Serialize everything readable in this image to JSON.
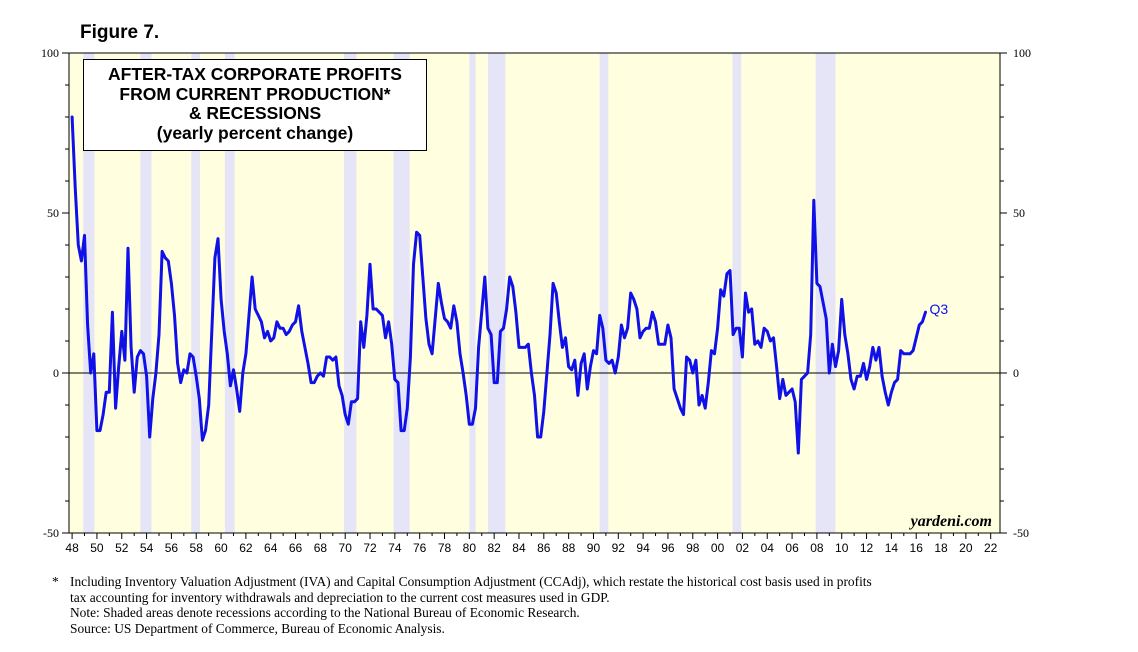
{
  "figure_label": "Figure 7.",
  "chart_data": {
    "type": "line",
    "title_lines": [
      "AFTER-TAX CORPORATE PROFITS",
      "FROM CURRENT PRODUCTION*",
      "& RECESSIONS",
      "(yearly percent change)"
    ],
    "watermark": "yardeni.com",
    "end_label": "Q3",
    "x_range": [
      1947.75,
      2022.75
    ],
    "ylim": [
      -50,
      100
    ],
    "y_ticks_left": [
      100,
      50,
      0,
      -50
    ],
    "y_ticks_right": [
      100,
      50,
      0,
      -50
    ],
    "x_tick_labels": [
      "48",
      "50",
      "52",
      "54",
      "56",
      "58",
      "60",
      "62",
      "64",
      "66",
      "68",
      "70",
      "72",
      "74",
      "76",
      "78",
      "80",
      "82",
      "84",
      "86",
      "88",
      "90",
      "92",
      "94",
      "96",
      "98",
      "00",
      "02",
      "04",
      "06",
      "08",
      "10",
      "12",
      "14",
      "16",
      "18",
      "20",
      "22"
    ],
    "colors": {
      "plot_bg": "#ffffe0",
      "recession": "#e5e5f7",
      "line": "#1010e8",
      "axis": "#000000"
    },
    "recessions": [
      [
        1948.9,
        1949.8
      ],
      [
        1953.5,
        1954.4
      ],
      [
        1957.6,
        1958.3
      ],
      [
        1960.3,
        1961.1
      ],
      [
        1969.9,
        1970.9
      ],
      [
        1973.9,
        1975.2
      ],
      [
        1980.0,
        1980.5
      ],
      [
        1981.5,
        1982.9
      ],
      [
        1990.5,
        1991.2
      ],
      [
        2001.2,
        2001.9
      ],
      [
        2007.9,
        2009.5
      ]
    ],
    "series": [
      {
        "name": "After-tax corporate profits from current production, y/y % change",
        "points": [
          [
            1948.0,
            80
          ],
          [
            1948.25,
            58
          ],
          [
            1948.5,
            40
          ],
          [
            1948.75,
            35
          ],
          [
            1949.0,
            43
          ],
          [
            1949.25,
            15
          ],
          [
            1949.5,
            0
          ],
          [
            1949.75,
            6
          ],
          [
            1950.0,
            -18
          ],
          [
            1950.25,
            -18
          ],
          [
            1950.5,
            -13
          ],
          [
            1950.75,
            -6
          ],
          [
            1951.0,
            -6
          ],
          [
            1951.25,
            19
          ],
          [
            1951.5,
            -11
          ],
          [
            1951.75,
            2
          ],
          [
            1952.0,
            13
          ],
          [
            1952.25,
            4
          ],
          [
            1952.5,
            39
          ],
          [
            1952.75,
            8
          ],
          [
            1953.0,
            -6
          ],
          [
            1953.25,
            5
          ],
          [
            1953.5,
            7
          ],
          [
            1953.75,
            6
          ],
          [
            1954.0,
            -1
          ],
          [
            1954.25,
            -20
          ],
          [
            1954.5,
            -8
          ],
          [
            1954.75,
            0
          ],
          [
            1955.0,
            12
          ],
          [
            1955.25,
            38
          ],
          [
            1955.5,
            36
          ],
          [
            1955.75,
            35
          ],
          [
            1956.0,
            28
          ],
          [
            1956.25,
            18
          ],
          [
            1956.5,
            3
          ],
          [
            1956.75,
            -3
          ],
          [
            1957.0,
            1
          ],
          [
            1957.25,
            0
          ],
          [
            1957.5,
            6
          ],
          [
            1957.75,
            5
          ],
          [
            1958.0,
            -1
          ],
          [
            1958.25,
            -8
          ],
          [
            1958.5,
            -21
          ],
          [
            1958.75,
            -18
          ],
          [
            1959.0,
            -10
          ],
          [
            1959.25,
            13
          ],
          [
            1959.5,
            36
          ],
          [
            1959.75,
            42
          ],
          [
            1960.0,
            23
          ],
          [
            1960.25,
            13
          ],
          [
            1960.5,
            6
          ],
          [
            1960.75,
            -4
          ],
          [
            1961.0,
            1
          ],
          [
            1961.25,
            -5
          ],
          [
            1961.5,
            -12
          ],
          [
            1961.75,
            0
          ],
          [
            1962.0,
            6
          ],
          [
            1962.25,
            18
          ],
          [
            1962.5,
            30
          ],
          [
            1962.75,
            20
          ],
          [
            1963.0,
            18
          ],
          [
            1963.25,
            16
          ],
          [
            1963.5,
            11
          ],
          [
            1963.75,
            13
          ],
          [
            1964.0,
            10
          ],
          [
            1964.25,
            11
          ],
          [
            1964.5,
            16
          ],
          [
            1964.75,
            14
          ],
          [
            1965.0,
            14
          ],
          [
            1965.25,
            12
          ],
          [
            1965.5,
            13
          ],
          [
            1965.75,
            15
          ],
          [
            1966.0,
            16
          ],
          [
            1966.25,
            21
          ],
          [
            1966.5,
            13
          ],
          [
            1966.75,
            8
          ],
          [
            1967.0,
            3
          ],
          [
            1967.25,
            -3
          ],
          [
            1967.5,
            -3
          ],
          [
            1967.75,
            -1
          ],
          [
            1968.0,
            0
          ],
          [
            1968.25,
            -1
          ],
          [
            1968.5,
            5
          ],
          [
            1968.75,
            5
          ],
          [
            1969.0,
            4
          ],
          [
            1969.25,
            5
          ],
          [
            1969.5,
            -4
          ],
          [
            1969.75,
            -7
          ],
          [
            1970.0,
            -13
          ],
          [
            1970.25,
            -16
          ],
          [
            1970.5,
            -9
          ],
          [
            1970.75,
            -9
          ],
          [
            1971.0,
            -8
          ],
          [
            1971.25,
            16
          ],
          [
            1971.5,
            8
          ],
          [
            1971.75,
            18
          ],
          [
            1972.0,
            34
          ],
          [
            1972.25,
            20
          ],
          [
            1972.5,
            20
          ],
          [
            1972.75,
            19
          ],
          [
            1973.0,
            18
          ],
          [
            1973.25,
            11
          ],
          [
            1973.5,
            16
          ],
          [
            1973.75,
            9
          ],
          [
            1974.0,
            -2
          ],
          [
            1974.25,
            -3
          ],
          [
            1974.5,
            -18
          ],
          [
            1974.75,
            -18
          ],
          [
            1975.0,
            -11
          ],
          [
            1975.25,
            5
          ],
          [
            1975.5,
            34
          ],
          [
            1975.75,
            44
          ],
          [
            1976.0,
            43
          ],
          [
            1976.25,
            30
          ],
          [
            1976.5,
            17
          ],
          [
            1976.75,
            9
          ],
          [
            1977.0,
            6
          ],
          [
            1977.25,
            17
          ],
          [
            1977.5,
            28
          ],
          [
            1977.75,
            22
          ],
          [
            1978.0,
            17
          ],
          [
            1978.25,
            16
          ],
          [
            1978.5,
            14
          ],
          [
            1978.75,
            21
          ],
          [
            1979.0,
            16
          ],
          [
            1979.25,
            6
          ],
          [
            1979.5,
            0
          ],
          [
            1979.75,
            -7
          ],
          [
            1980.0,
            -16
          ],
          [
            1980.25,
            -16
          ],
          [
            1980.5,
            -11
          ],
          [
            1980.75,
            8
          ],
          [
            1981.0,
            19
          ],
          [
            1981.25,
            30
          ],
          [
            1981.5,
            14
          ],
          [
            1981.75,
            12
          ],
          [
            1982.0,
            -3
          ],
          [
            1982.25,
            -3
          ],
          [
            1982.5,
            13
          ],
          [
            1982.75,
            14
          ],
          [
            1983.0,
            20
          ],
          [
            1983.25,
            30
          ],
          [
            1983.5,
            27
          ],
          [
            1983.75,
            19
          ],
          [
            1984.0,
            8
          ],
          [
            1984.25,
            8
          ],
          [
            1984.5,
            8
          ],
          [
            1984.75,
            9
          ],
          [
            1985.0,
            0
          ],
          [
            1985.25,
            -7
          ],
          [
            1985.5,
            -20
          ],
          [
            1985.75,
            -20
          ],
          [
            1986.0,
            -12
          ],
          [
            1986.25,
            0
          ],
          [
            1986.5,
            12
          ],
          [
            1986.75,
            28
          ],
          [
            1987.0,
            25
          ],
          [
            1987.25,
            16
          ],
          [
            1987.5,
            8
          ],
          [
            1987.75,
            11
          ],
          [
            1988.0,
            2
          ],
          [
            1988.25,
            1
          ],
          [
            1988.5,
            4
          ],
          [
            1988.75,
            -7
          ],
          [
            1989.0,
            3
          ],
          [
            1989.25,
            6
          ],
          [
            1989.5,
            -5
          ],
          [
            1989.75,
            2
          ],
          [
            1990.0,
            7
          ],
          [
            1990.25,
            6
          ],
          [
            1990.5,
            18
          ],
          [
            1990.75,
            14
          ],
          [
            1991.0,
            4
          ],
          [
            1991.25,
            3
          ],
          [
            1991.5,
            4
          ],
          [
            1991.75,
            0
          ],
          [
            1992.0,
            5
          ],
          [
            1992.25,
            15
          ],
          [
            1992.5,
            11
          ],
          [
            1992.75,
            14
          ],
          [
            1993.0,
            25
          ],
          [
            1993.25,
            23
          ],
          [
            1993.5,
            20
          ],
          [
            1993.75,
            11
          ],
          [
            1994.0,
            13
          ],
          [
            1994.25,
            14
          ],
          [
            1994.5,
            14
          ],
          [
            1994.75,
            19
          ],
          [
            1995.0,
            16
          ],
          [
            1995.25,
            9
          ],
          [
            1995.5,
            9
          ],
          [
            1995.75,
            9
          ],
          [
            1996.0,
            15
          ],
          [
            1996.25,
            11
          ],
          [
            1996.5,
            -5
          ],
          [
            1996.75,
            -8
          ],
          [
            1997.0,
            -11
          ],
          [
            1997.25,
            -13
          ],
          [
            1997.5,
            5
          ],
          [
            1997.75,
            4
          ],
          [
            1998.0,
            0
          ],
          [
            1998.25,
            4
          ],
          [
            1998.5,
            -10
          ],
          [
            1998.75,
            -7
          ],
          [
            1999.0,
            -11
          ],
          [
            1999.25,
            -3
          ],
          [
            1999.5,
            7
          ],
          [
            1999.75,
            6
          ],
          [
            2000.0,
            14
          ],
          [
            2000.25,
            26
          ],
          [
            2000.5,
            24
          ],
          [
            2000.75,
            31
          ],
          [
            2001.0,
            32
          ],
          [
            2001.25,
            12
          ],
          [
            2001.5,
            14
          ],
          [
            2001.75,
            14
          ],
          [
            2002.0,
            5
          ],
          [
            2002.25,
            25
          ],
          [
            2002.5,
            19
          ],
          [
            2002.75,
            20
          ],
          [
            2003.0,
            9
          ],
          [
            2003.25,
            10
          ],
          [
            2003.5,
            8
          ],
          [
            2003.75,
            14
          ],
          [
            2004.0,
            13
          ],
          [
            2004.25,
            10
          ],
          [
            2004.5,
            11
          ],
          [
            2004.75,
            2
          ],
          [
            2005.0,
            -8
          ],
          [
            2005.25,
            -2
          ],
          [
            2005.5,
            -7
          ],
          [
            2005.75,
            -6
          ],
          [
            2006.0,
            -5
          ],
          [
            2006.25,
            -9
          ],
          [
            2006.5,
            -25
          ],
          [
            2006.75,
            -2
          ],
          [
            2007.0,
            -1
          ],
          [
            2007.25,
            0
          ],
          [
            2007.5,
            12
          ],
          [
            2007.75,
            54
          ],
          [
            2008.0,
            28
          ],
          [
            2008.25,
            27
          ],
          [
            2008.5,
            22
          ],
          [
            2008.75,
            17
          ],
          [
            2009.0,
            0
          ],
          [
            2009.25,
            9
          ],
          [
            2009.5,
            2
          ],
          [
            2009.75,
            7
          ],
          [
            2010.0,
            23
          ],
          [
            2010.25,
            12
          ],
          [
            2010.5,
            6
          ],
          [
            2010.75,
            -2
          ],
          [
            2011.0,
            -5
          ],
          [
            2011.25,
            -1
          ],
          [
            2011.5,
            -1
          ],
          [
            2011.75,
            3
          ],
          [
            2012.0,
            -2
          ],
          [
            2012.25,
            2
          ],
          [
            2012.5,
            8
          ],
          [
            2012.75,
            4
          ],
          [
            2013.0,
            8
          ],
          [
            2013.25,
            -1
          ],
          [
            2013.5,
            -6
          ],
          [
            2013.75,
            -10
          ],
          [
            2014.0,
            -6
          ],
          [
            2014.25,
            -3
          ],
          [
            2014.5,
            -2
          ],
          [
            2014.75,
            7
          ],
          [
            2015.0,
            6
          ],
          [
            2015.25,
            6
          ],
          [
            2015.5,
            6
          ],
          [
            2015.75,
            7
          ],
          [
            2016.0,
            11
          ],
          [
            2016.25,
            15
          ],
          [
            2016.5,
            16
          ],
          [
            2016.75,
            19
          ]
        ]
      }
    ]
  },
  "footnotes": {
    "mark": "*",
    "line1": "Including Inventory Valuation Adjustment (IVA) and Capital Consumption Adjustment (CCAdj), which restate the historical cost basis used in profits",
    "line2": "tax accounting for inventory withdrawals and depreciation to the current cost measures used in GDP.",
    "note": "Note: Shaded areas denote recessions according to the National Bureau of Economic Research.",
    "source": "Source: US Department of Commerce, Bureau of Economic Analysis."
  }
}
